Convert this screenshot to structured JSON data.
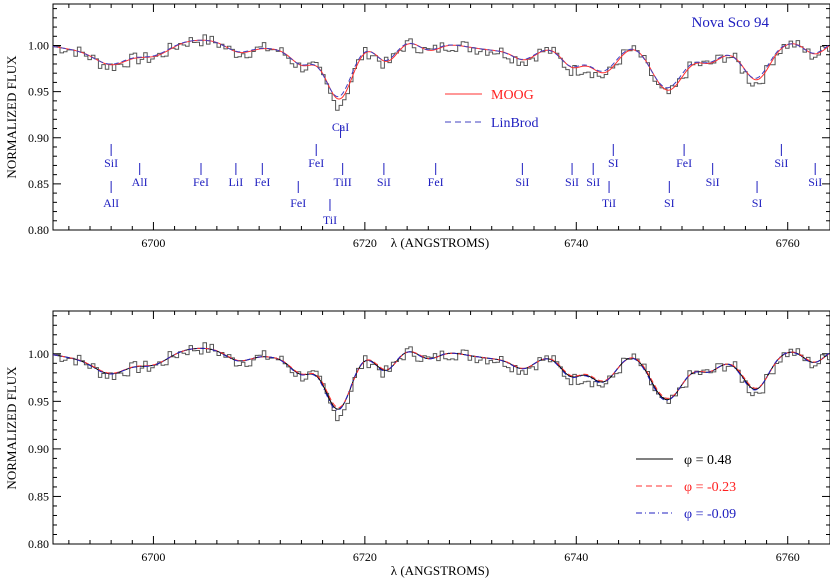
{
  "chart_data": [
    {
      "type": "line",
      "title": "Nova Sco 94",
      "xlabel": "λ (ANGSTROMS)",
      "ylabel": "NORMALIZED FLUX",
      "xlim": [
        6690.5,
        6764
      ],
      "ylim": [
        0.8,
        1.045
      ],
      "x_ticks": [
        6700,
        6720,
        6740,
        6760
      ],
      "y_ticks": [
        0.8,
        0.85,
        0.9,
        0.95,
        1.0
      ],
      "grid": false,
      "legend_position": "center-right",
      "series": [
        {
          "name": "",
          "style": "histogram",
          "color": "#555555"
        },
        {
          "name": "MOOG",
          "style": "solid",
          "color": "#ff3030"
        },
        {
          "name": "LinBrod",
          "style": "dashed",
          "color": "#4040c0"
        }
      ],
      "absorption_features": [
        {
          "center": 6717.5,
          "depth": 0.055,
          "width": 1.2
        },
        {
          "center": 6722.0,
          "depth": 0.022,
          "width": 1.0
        },
        {
          "center": 6700.0,
          "depth": 0.012,
          "width": 1.5
        },
        {
          "center": 6708.0,
          "depth": 0.01,
          "width": 1.2
        },
        {
          "center": 6714.0,
          "depth": 0.015,
          "width": 1.0
        },
        {
          "center": 6726.0,
          "depth": 0.01,
          "width": 1.0
        },
        {
          "center": 6735.0,
          "depth": 0.01,
          "width": 1.0
        },
        {
          "center": 6739.5,
          "depth": 0.022,
          "width": 1.0
        },
        {
          "center": 6742.5,
          "depth": 0.035,
          "width": 1.4
        },
        {
          "center": 6748.5,
          "depth": 0.048,
          "width": 1.5
        },
        {
          "center": 6752.5,
          "depth": 0.012,
          "width": 1.0
        },
        {
          "center": 6757.0,
          "depth": 0.035,
          "width": 1.2
        },
        {
          "center": 6762.5,
          "depth": 0.015,
          "width": 1.0
        },
        {
          "center": 6696.0,
          "depth": 0.015,
          "width": 1.5
        }
      ],
      "line_ids": [
        {
          "label": "SiI",
          "x": 6696.0,
          "level": "upper"
        },
        {
          "label": "AlI",
          "x": 6696.0,
          "level": "lower"
        },
        {
          "label": "AlI",
          "x": 6698.7,
          "level": "middle"
        },
        {
          "label": "FeI",
          "x": 6704.5,
          "level": "middle"
        },
        {
          "label": "LiI",
          "x": 6707.8,
          "level": "middle"
        },
        {
          "label": "FeI",
          "x": 6710.3,
          "level": "middle"
        },
        {
          "label": "FeI",
          "x": 6713.7,
          "level": "lower"
        },
        {
          "label": "FeI",
          "x": 6715.4,
          "level": "upper"
        },
        {
          "label": "TiI",
          "x": 6716.7,
          "level": "bottom"
        },
        {
          "label": "CaI",
          "x": 6717.7,
          "level": "top"
        },
        {
          "label": "TiII",
          "x": 6717.9,
          "level": "middle"
        },
        {
          "label": "SiI",
          "x": 6721.8,
          "level": "middle"
        },
        {
          "label": "FeI",
          "x": 6726.7,
          "level": "middle"
        },
        {
          "label": "SiI",
          "x": 6734.9,
          "level": "middle"
        },
        {
          "label": "SiI",
          "x": 6739.6,
          "level": "middle"
        },
        {
          "label": "SiI",
          "x": 6741.6,
          "level": "middle"
        },
        {
          "label": "SI",
          "x": 6743.5,
          "level": "upper"
        },
        {
          "label": "TiI",
          "x": 6743.1,
          "level": "lower"
        },
        {
          "label": "SI",
          "x": 6748.8,
          "level": "lower"
        },
        {
          "label": "FeI",
          "x": 6750.2,
          "level": "upper"
        },
        {
          "label": "SiI",
          "x": 6752.9,
          "level": "middle"
        },
        {
          "label": "SI",
          "x": 6757.1,
          "level": "lower"
        },
        {
          "label": "SiI",
          "x": 6759.4,
          "level": "upper"
        },
        {
          "label": "SiI",
          "x": 6762.6,
          "level": "middle"
        }
      ]
    },
    {
      "type": "line",
      "title": "",
      "xlabel": "λ (ANGSTROMS)",
      "ylabel": "NORMALIZED FLUX",
      "xlim": [
        6690.5,
        6764
      ],
      "ylim": [
        0.8,
        1.045
      ],
      "x_ticks": [
        6700,
        6720,
        6740,
        6760
      ],
      "y_ticks": [
        0.8,
        0.85,
        0.9,
        0.95,
        1.0
      ],
      "grid": false,
      "legend_position": "lower-right",
      "series": [
        {
          "name": "",
          "style": "histogram",
          "color": "#555555"
        },
        {
          "name": "φ =  0.48",
          "style": "solid",
          "color": "#000000"
        },
        {
          "name": "φ = -0.23",
          "style": "dashed",
          "color": "#ff3030"
        },
        {
          "name": "φ = -0.09",
          "style": "dashdot",
          "color": "#2020c0"
        }
      ]
    }
  ],
  "ui": {
    "top": {
      "title": "Nova Sco 94",
      "xlabel": "λ (ANGSTROMS)",
      "ylabel": "NORMALIZED FLUX",
      "legend": [
        "MOOG",
        "LinBrod"
      ],
      "ytick_labels": [
        "0.80",
        "0.85",
        "0.90",
        "0.95",
        "1.00"
      ],
      "xtick_labels": [
        "6700",
        "6720",
        "6740",
        "6760"
      ]
    },
    "bottom": {
      "xlabel": "λ (ANGSTROMS)",
      "ylabel": "NORMALIZED FLUX",
      "legend": [
        {
          "phi": "φ",
          "text": " =  0.48"
        },
        {
          "phi": "φ",
          "text": " = -0.23"
        },
        {
          "phi": "φ",
          "text": " = -0.09"
        }
      ],
      "ytick_labels": [
        "0.80",
        "0.85",
        "0.90",
        "0.95",
        "1.00"
      ],
      "xtick_labels": [
        "6700",
        "6720",
        "6740",
        "6760"
      ]
    }
  }
}
